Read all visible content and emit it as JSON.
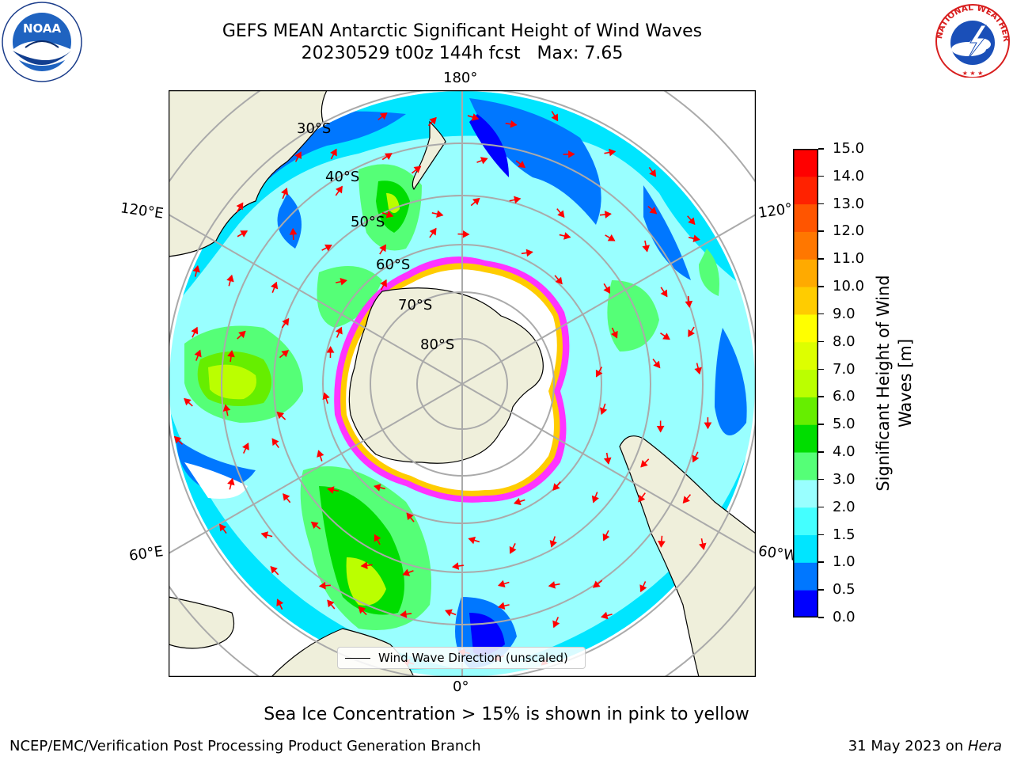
{
  "header": {
    "title_line1": "GEFS MEAN Antarctic Significant Height of Wind Waves",
    "title_line2": "20230529 t00z 144h fcst   Max: 7.65",
    "left_logo": "NOAA",
    "right_logo": "NATIONAL WEATHER SERVICE"
  },
  "map": {
    "projection": "south-polar-stereographic",
    "longitude_labels": [
      "180°",
      "120°E",
      "120°",
      "60°E",
      "60°W",
      "0°"
    ],
    "latitude_labels": [
      "30°S",
      "40°S",
      "50°S",
      "60°S",
      "70°S",
      "80°S"
    ],
    "land_color": "#efefdb",
    "ice_colors": [
      "#ff33ff",
      "#ffcc00"
    ],
    "legend_label": "Wind Wave Direction (unscaled)",
    "arrow_color": "#ff0000"
  },
  "colorbar": {
    "label_line1": "Significant Height of Wind",
    "label_line2": "Waves [m]",
    "ticks": [
      "0.0",
      "0.5",
      "1.0",
      "1.5",
      "2.0",
      "3.0",
      "4.0",
      "5.0",
      "6.0",
      "7.0",
      "8.0",
      "9.0",
      "10.0",
      "11.0",
      "12.0",
      "13.0",
      "14.0",
      "15.0"
    ],
    "colors": [
      "#0000ff",
      "#0077ff",
      "#00e5ff",
      "#44ffff",
      "#99ffff",
      "#55ff77",
      "#00dd00",
      "#66ee00",
      "#bbff00",
      "#ddff00",
      "#ffff00",
      "#ffcc00",
      "#ffaa00",
      "#ff7700",
      "#ff5500",
      "#ff2200",
      "#ff0000"
    ]
  },
  "footer": {
    "note": "Sea Ice Concentration > 15% is shown in pink to yellow",
    "org": "NCEP/EMC/Verification Post Processing Product Generation Branch",
    "date": "31 May 2023 on ",
    "host": "Hera"
  }
}
